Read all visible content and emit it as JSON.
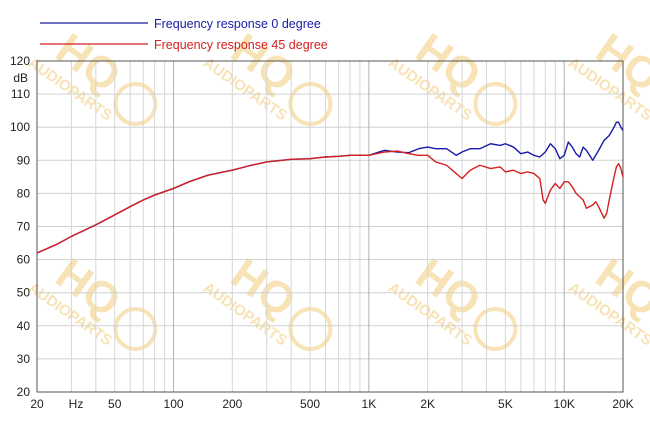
{
  "chart_data": {
    "type": "line",
    "x_scale": "log",
    "xlim": [
      20,
      20000
    ],
    "ylim": [
      20,
      120
    ],
    "y_ticks": [
      20,
      30,
      40,
      50,
      60,
      70,
      80,
      90,
      100,
      110,
      120
    ],
    "ylabel": "dB",
    "xlabel": "Hz",
    "x_tick_values": [
      20,
      50,
      100,
      200,
      500,
      1000,
      2000,
      5000,
      10000,
      20000
    ],
    "x_tick_labels": [
      "20",
      "50",
      "100",
      "200",
      "500",
      "1K",
      "2K",
      "5K",
      "10K",
      "20K"
    ],
    "grid": true,
    "legend_position": "top-left",
    "series": [
      {
        "name": "Frequency response 0 degree",
        "color": "#1a1aa8",
        "points": [
          [
            20,
            62
          ],
          [
            25,
            64.5
          ],
          [
            30,
            67
          ],
          [
            40,
            70.5
          ],
          [
            50,
            73.5
          ],
          [
            60,
            76
          ],
          [
            70,
            78
          ],
          [
            80,
            79.5
          ],
          [
            100,
            81.5
          ],
          [
            120,
            83.5
          ],
          [
            150,
            85.5
          ],
          [
            200,
            87
          ],
          [
            250,
            88.5
          ],
          [
            300,
            89.5
          ],
          [
            400,
            90.3
          ],
          [
            500,
            90.5
          ],
          [
            600,
            91
          ],
          [
            700,
            91.2
          ],
          [
            800,
            91.5
          ],
          [
            1000,
            91.5
          ],
          [
            1200,
            93
          ],
          [
            1400,
            92.5
          ],
          [
            1600,
            92.3
          ],
          [
            1800,
            93.5
          ],
          [
            2000,
            94
          ],
          [
            2200,
            93.5
          ],
          [
            2500,
            93.5
          ],
          [
            2800,
            91.5
          ],
          [
            3000,
            92.5
          ],
          [
            3300,
            93.5
          ],
          [
            3700,
            93.5
          ],
          [
            4200,
            95
          ],
          [
            4700,
            94.5
          ],
          [
            5000,
            95
          ],
          [
            5500,
            94
          ],
          [
            6000,
            92
          ],
          [
            6500,
            92.5
          ],
          [
            7000,
            91.5
          ],
          [
            7500,
            91
          ],
          [
            8000,
            92.5
          ],
          [
            8500,
            95
          ],
          [
            9000,
            93.5
          ],
          [
            9500,
            90.5
          ],
          [
            10000,
            91.5
          ],
          [
            10500,
            95.5
          ],
          [
            11000,
            94
          ],
          [
            11500,
            92
          ],
          [
            12000,
            91
          ],
          [
            12500,
            94
          ],
          [
            13000,
            93
          ],
          [
            14000,
            90
          ],
          [
            15000,
            93
          ],
          [
            16000,
            96
          ],
          [
            17000,
            97.5
          ],
          [
            18000,
            100
          ],
          [
            18500,
            101.5
          ],
          [
            19000,
            101.5
          ],
          [
            19500,
            100
          ],
          [
            20000,
            99
          ]
        ]
      },
      {
        "name": "Frequency response 45 degree",
        "color": "#d42020",
        "points": [
          [
            20,
            62
          ],
          [
            25,
            64.5
          ],
          [
            30,
            67
          ],
          [
            40,
            70.5
          ],
          [
            50,
            73.5
          ],
          [
            60,
            76
          ],
          [
            70,
            78
          ],
          [
            80,
            79.5
          ],
          [
            100,
            81.5
          ],
          [
            120,
            83.5
          ],
          [
            150,
            85.5
          ],
          [
            200,
            87
          ],
          [
            250,
            88.5
          ],
          [
            300,
            89.5
          ],
          [
            400,
            90.3
          ],
          [
            500,
            90.5
          ],
          [
            600,
            91
          ],
          [
            700,
            91.2
          ],
          [
            800,
            91.5
          ],
          [
            1000,
            91.5
          ],
          [
            1200,
            92.5
          ],
          [
            1400,
            92.8
          ],
          [
            1600,
            92
          ],
          [
            1800,
            91.5
          ],
          [
            2000,
            91.5
          ],
          [
            2200,
            89.5
          ],
          [
            2500,
            88.5
          ],
          [
            2800,
            86
          ],
          [
            3000,
            84.5
          ],
          [
            3300,
            87
          ],
          [
            3700,
            88.5
          ],
          [
            4200,
            87.5
          ],
          [
            4700,
            88
          ],
          [
            5000,
            86.5
          ],
          [
            5500,
            87
          ],
          [
            6000,
            86
          ],
          [
            6500,
            86.5
          ],
          [
            7000,
            86
          ],
          [
            7500,
            84.5
          ],
          [
            7800,
            78
          ],
          [
            8000,
            77
          ],
          [
            8500,
            81
          ],
          [
            9000,
            83
          ],
          [
            9500,
            81.5
          ],
          [
            10000,
            83.5
          ],
          [
            10500,
            83.5
          ],
          [
            11000,
            82
          ],
          [
            11500,
            80
          ],
          [
            12000,
            79
          ],
          [
            12500,
            78
          ],
          [
            13000,
            75.5
          ],
          [
            14000,
            76.5
          ],
          [
            14500,
            77.5
          ],
          [
            15000,
            76
          ],
          [
            16000,
            72.5
          ],
          [
            16500,
            74
          ],
          [
            17000,
            78
          ],
          [
            18000,
            85
          ],
          [
            18500,
            88
          ],
          [
            19000,
            89
          ],
          [
            19500,
            87.5
          ],
          [
            20000,
            85
          ]
        ]
      }
    ]
  },
  "watermark": {
    "logo_text": "HQ",
    "sub_text": "AUDIOPARTS"
  }
}
